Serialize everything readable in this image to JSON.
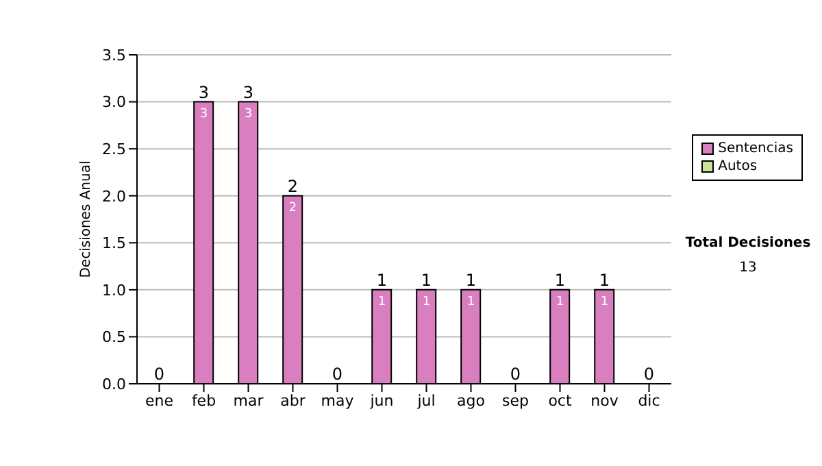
{
  "chart_data": {
    "type": "bar",
    "stacked": true,
    "ylabel": "Decisiones Anual",
    "categories": [
      "ene",
      "feb",
      "mar",
      "abr",
      "may",
      "jun",
      "jul",
      "ago",
      "sep",
      "oct",
      "nov",
      "dic"
    ],
    "series": [
      {
        "name": "Sentencias",
        "color": "#d97ebf",
        "values": [
          0,
          3,
          3,
          2,
          0,
          1,
          1,
          1,
          0,
          1,
          1,
          0
        ],
        "value_labels": [
          null,
          "3",
          "3",
          "2",
          null,
          "1",
          "1",
          "1",
          null,
          "1",
          "1",
          null
        ]
      },
      {
        "name": "Autos",
        "color": "#cce699",
        "values": [
          0,
          0,
          0,
          0,
          0,
          0,
          0,
          0,
          0,
          0,
          0,
          0
        ]
      }
    ],
    "totals": [
      "0",
      "3",
      "3",
      "2",
      "0",
      "1",
      "1",
      "1",
      "0",
      "1",
      "1",
      "0"
    ],
    "ylim": [
      0,
      3.5
    ],
    "yticks": [
      {
        "value": 0,
        "label": "0.0"
      },
      {
        "value": 0.5,
        "label": "0.5"
      },
      {
        "value": 1,
        "label": "1.0"
      },
      {
        "value": 1.5,
        "label": "1.5"
      },
      {
        "value": 2,
        "label": "2.0"
      },
      {
        "value": 2.5,
        "label": "2.5"
      },
      {
        "value": 3,
        "label": "3.0"
      },
      {
        "value": 3.5,
        "label": "3.5"
      }
    ],
    "grid": "y",
    "legend": "right",
    "annotations": [
      "Total Decisiones",
      "13"
    ]
  }
}
